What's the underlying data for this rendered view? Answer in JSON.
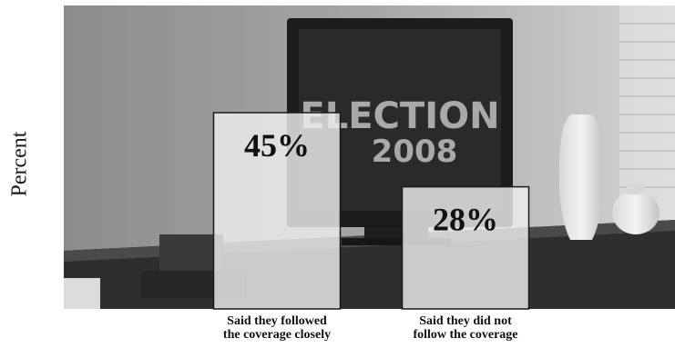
{
  "chart_data": {
    "type": "bar",
    "categories": [
      "Said they followed the coverage closely",
      "Said they did not follow the coverage"
    ],
    "category_lines": [
      [
        "Said they followed",
        "the coverage closely"
      ],
      [
        "Said they did not",
        "follow the coverage"
      ]
    ],
    "values": [
      45,
      28
    ],
    "data_labels": [
      "45%",
      "28%"
    ],
    "ylabel": "Percent",
    "xlabel": "",
    "ylim": [
      0,
      100
    ],
    "grid": false,
    "background": "photo of a television showing ELECTION 2008"
  },
  "photo": {
    "screen_line1": "ELECTION",
    "screen_line2": "2008"
  },
  "colors": {
    "bar_fill": "#eeeeee",
    "bar_stroke": "#1a1a1a",
    "label_text": "#111111"
  }
}
